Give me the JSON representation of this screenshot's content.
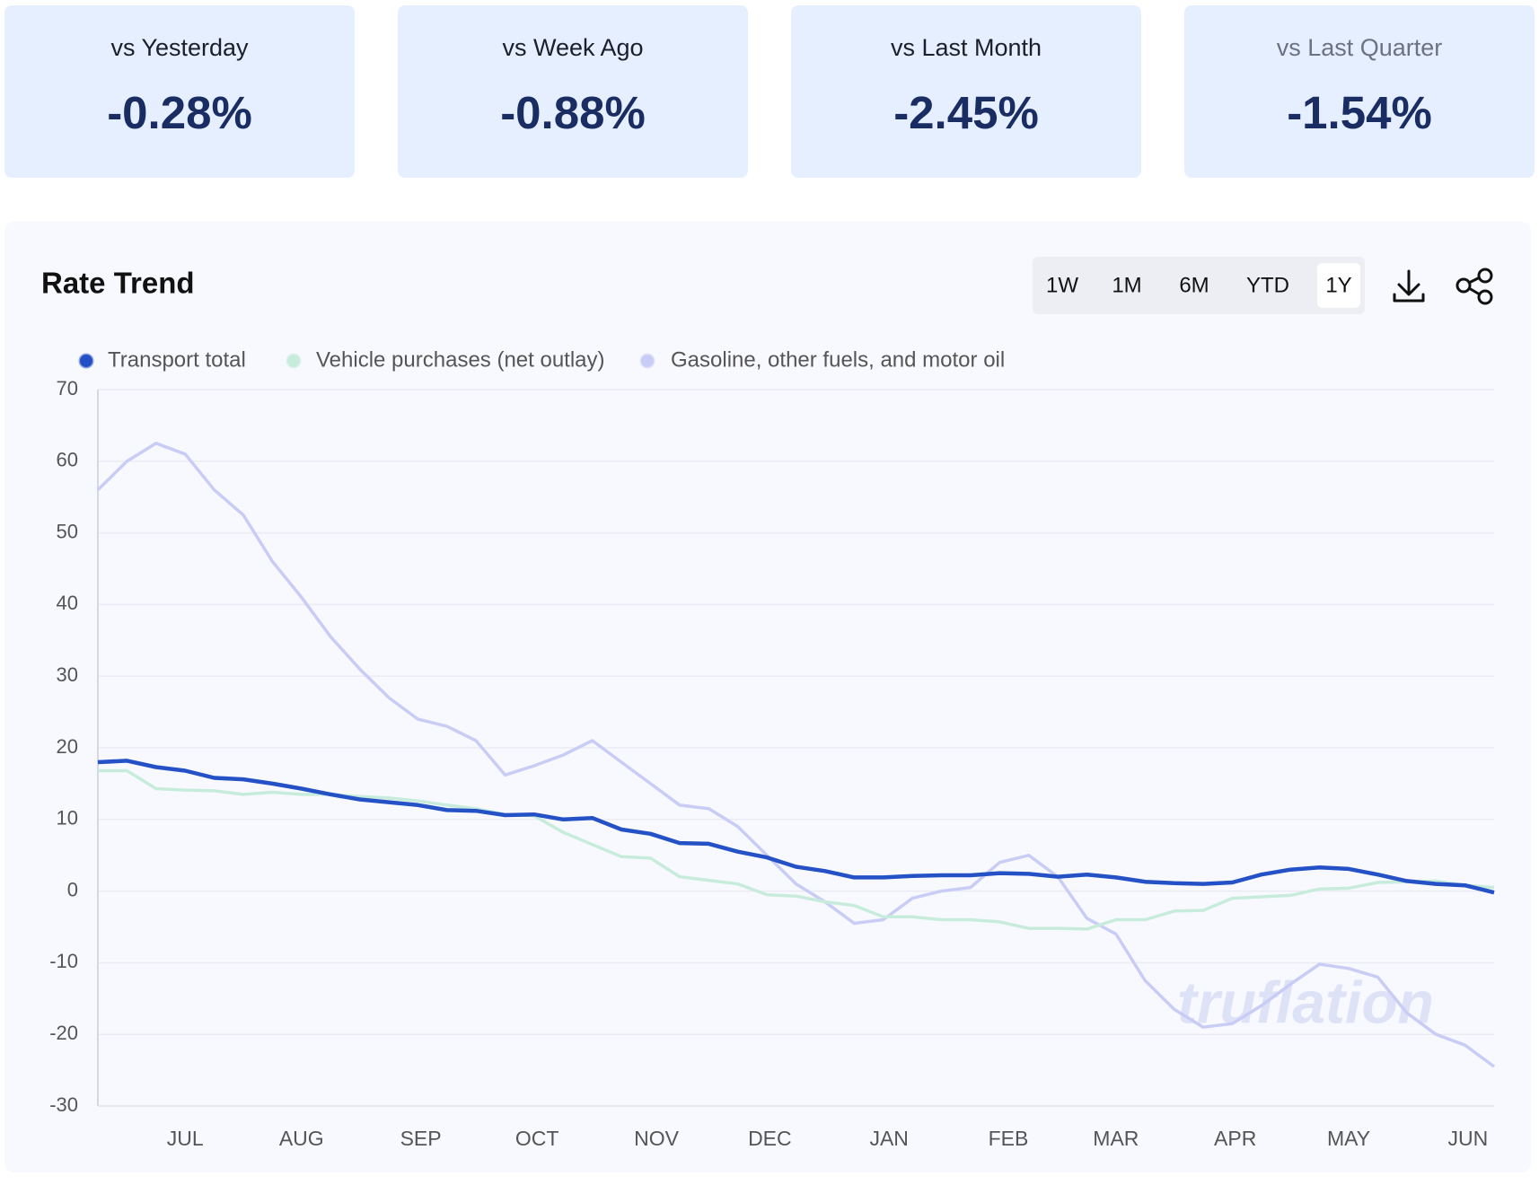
{
  "cards": [
    {
      "label": "vs Yesterday",
      "value": "-0.28%"
    },
    {
      "label": "vs Week Ago",
      "value": "-0.88%"
    },
    {
      "label": "vs Last Month",
      "value": "-2.45%"
    },
    {
      "label": "vs Last Quarter",
      "value": "-1.54%"
    }
  ],
  "toolbar": {
    "ranges": [
      "1W",
      "1M",
      "6M",
      "YTD",
      "1Y"
    ],
    "active": "1Y"
  },
  "watermark": "truflation",
  "chart_data": {
    "type": "line",
    "title": "Rate Trend",
    "xlim": [
      0,
      48
    ],
    "xticks": [
      {
        "value": 3,
        "label": "JUL"
      },
      {
        "value": 7,
        "label": "AUG"
      },
      {
        "value": 11.1,
        "label": "SEP"
      },
      {
        "value": 15.1,
        "label": "OCT"
      },
      {
        "value": 19.2,
        "label": "NOV"
      },
      {
        "value": 23.1,
        "label": "DEC"
      },
      {
        "value": 27.2,
        "label": "JAN"
      },
      {
        "value": 31.3,
        "label": "FEB"
      },
      {
        "value": 35,
        "label": "MAR"
      },
      {
        "value": 39.1,
        "label": "APR"
      },
      {
        "value": 43,
        "label": "MAY"
      },
      {
        "value": 47.1,
        "label": "JUN"
      }
    ],
    "ylim": [
      -30,
      70
    ],
    "yticks": [
      -30,
      -20,
      -10,
      0,
      10,
      20,
      30,
      40,
      50,
      60,
      70
    ],
    "grid": true,
    "series": [
      {
        "name": "Transport total",
        "color": "#2551c6",
        "values": [
          18,
          18.2,
          17.3,
          16.8,
          15.8,
          15.6,
          15,
          14.3,
          13.5,
          12.8,
          12.4,
          12,
          11.3,
          11.2,
          10.6,
          10.7,
          10,
          10.2,
          8.6,
          8,
          6.7,
          6.6,
          5.5,
          4.7,
          3.4,
          2.8,
          1.9,
          1.9,
          2.1,
          2.2,
          2.2,
          2.5,
          2.4,
          2,
          2.3,
          1.9,
          1.3,
          1.1,
          1,
          1.2,
          2.3,
          3,
          3.3,
          3.1,
          2.3,
          1.4,
          1,
          0.8,
          -0.2
        ]
      },
      {
        "name": "Vehicle purchases (net outlay)",
        "color": "#c8ecdc",
        "values": [
          16.8,
          16.8,
          14.3,
          14.1,
          14,
          13.5,
          13.8,
          13.5,
          13.5,
          13.2,
          13,
          12.6,
          12,
          11.5,
          10.7,
          10.5,
          8.2,
          6.5,
          4.8,
          4.6,
          2,
          1.5,
          1,
          -0.5,
          -0.7,
          -1.5,
          -2,
          -3.6,
          -3.6,
          -4,
          -4,
          -4.3,
          -5.2,
          -5.2,
          -5.3,
          -4,
          -4,
          -2.8,
          -2.7,
          -1,
          -0.8,
          -0.6,
          0.3,
          0.4,
          1.2,
          1.3,
          1.4,
          0.8,
          0.5
        ]
      },
      {
        "name": "Gasoline, other fuels, and motor oil",
        "color": "#c9cdf6",
        "values": [
          56,
          60,
          62.5,
          61,
          56,
          52.5,
          46,
          41,
          35.5,
          31,
          27,
          24,
          23,
          21,
          16.2,
          17.5,
          19,
          21,
          18,
          15,
          12,
          11.5,
          9,
          5,
          1,
          -1.5,
          -4.5,
          -4,
          -1,
          0,
          0.5,
          4,
          5,
          2,
          -3.8,
          -6,
          -12.5,
          -16.5,
          -19,
          -18.5,
          -16,
          -13,
          -10.2,
          -10.8,
          -12,
          -17,
          -20,
          -21.5,
          -24.5
        ]
      }
    ]
  }
}
